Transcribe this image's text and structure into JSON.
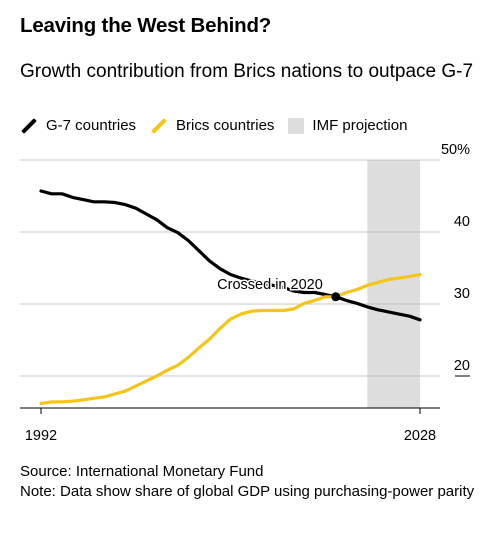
{
  "header": {
    "title": "Leaving the West Behind?",
    "subtitle": "Growth contribution from Brics nations to outpace G-7"
  },
  "legend": {
    "items": [
      {
        "label": "G-7 countries",
        "color": "#000000",
        "kind": "line"
      },
      {
        "label": "Brics countries",
        "color": "#f5c518",
        "kind": "line"
      },
      {
        "label": "IMF projection",
        "color": "#dddddd",
        "kind": "box"
      }
    ]
  },
  "footer": {
    "source": "Source: International Monetary Fund",
    "note": "Note: Data show share of global GDP using purchasing-power parity"
  },
  "chart_data": {
    "type": "line",
    "title": "Leaving the West Behind?",
    "subtitle": "Growth contribution from Brics nations to outpace G-7",
    "xlabel": "",
    "ylabel": "",
    "xlim": [
      1992,
      2028
    ],
    "ylim": [
      15.5,
      50
    ],
    "x_tick_labels": [
      "1992",
      "2028"
    ],
    "y_ticks": [
      {
        "value": 50,
        "label": "50%"
      },
      {
        "value": 40,
        "label": "40"
      },
      {
        "value": 30,
        "label": "30"
      },
      {
        "value": 20,
        "label": "20"
      }
    ],
    "grid": true,
    "legend_position": "top-left",
    "projection": {
      "from": 2023,
      "to": 2028,
      "label": "IMF projection"
    },
    "annotation": {
      "text": "Crossed in 2020",
      "x": 2020,
      "y": 31.0
    },
    "x": [
      1992,
      1993,
      1994,
      1995,
      1996,
      1997,
      1998,
      1999,
      2000,
      2001,
      2002,
      2003,
      2004,
      2005,
      2006,
      2007,
      2008,
      2009,
      2010,
      2011,
      2012,
      2013,
      2014,
      2015,
      2016,
      2017,
      2018,
      2019,
      2020,
      2021,
      2022,
      2023,
      2024,
      2025,
      2026,
      2027,
      2028
    ],
    "series": [
      {
        "name": "G-7 countries",
        "color": "#000000",
        "values": [
          45.7,
          45.3,
          45.3,
          44.8,
          44.5,
          44.2,
          44.2,
          44.1,
          43.8,
          43.3,
          42.5,
          41.7,
          40.6,
          39.9,
          38.8,
          37.4,
          36.0,
          34.9,
          34.1,
          33.6,
          33.2,
          32.9,
          32.6,
          32.3,
          31.8,
          31.6,
          31.6,
          31.3,
          31.0,
          30.5,
          30.1,
          29.6,
          29.2,
          28.9,
          28.6,
          28.3,
          27.8
        ]
      },
      {
        "name": "Brics countries",
        "color": "#f5c518",
        "values": [
          16.2,
          16.4,
          16.4,
          16.5,
          16.7,
          16.9,
          17.1,
          17.5,
          17.9,
          18.6,
          19.3,
          20.0,
          20.8,
          21.5,
          22.6,
          23.9,
          25.1,
          26.6,
          27.9,
          28.6,
          29.0,
          29.1,
          29.1,
          29.1,
          29.3,
          30.1,
          30.5,
          31.0,
          31.0,
          31.6,
          32.0,
          32.6,
          33.0,
          33.4,
          33.6,
          33.8,
          34.1
        ]
      }
    ]
  }
}
